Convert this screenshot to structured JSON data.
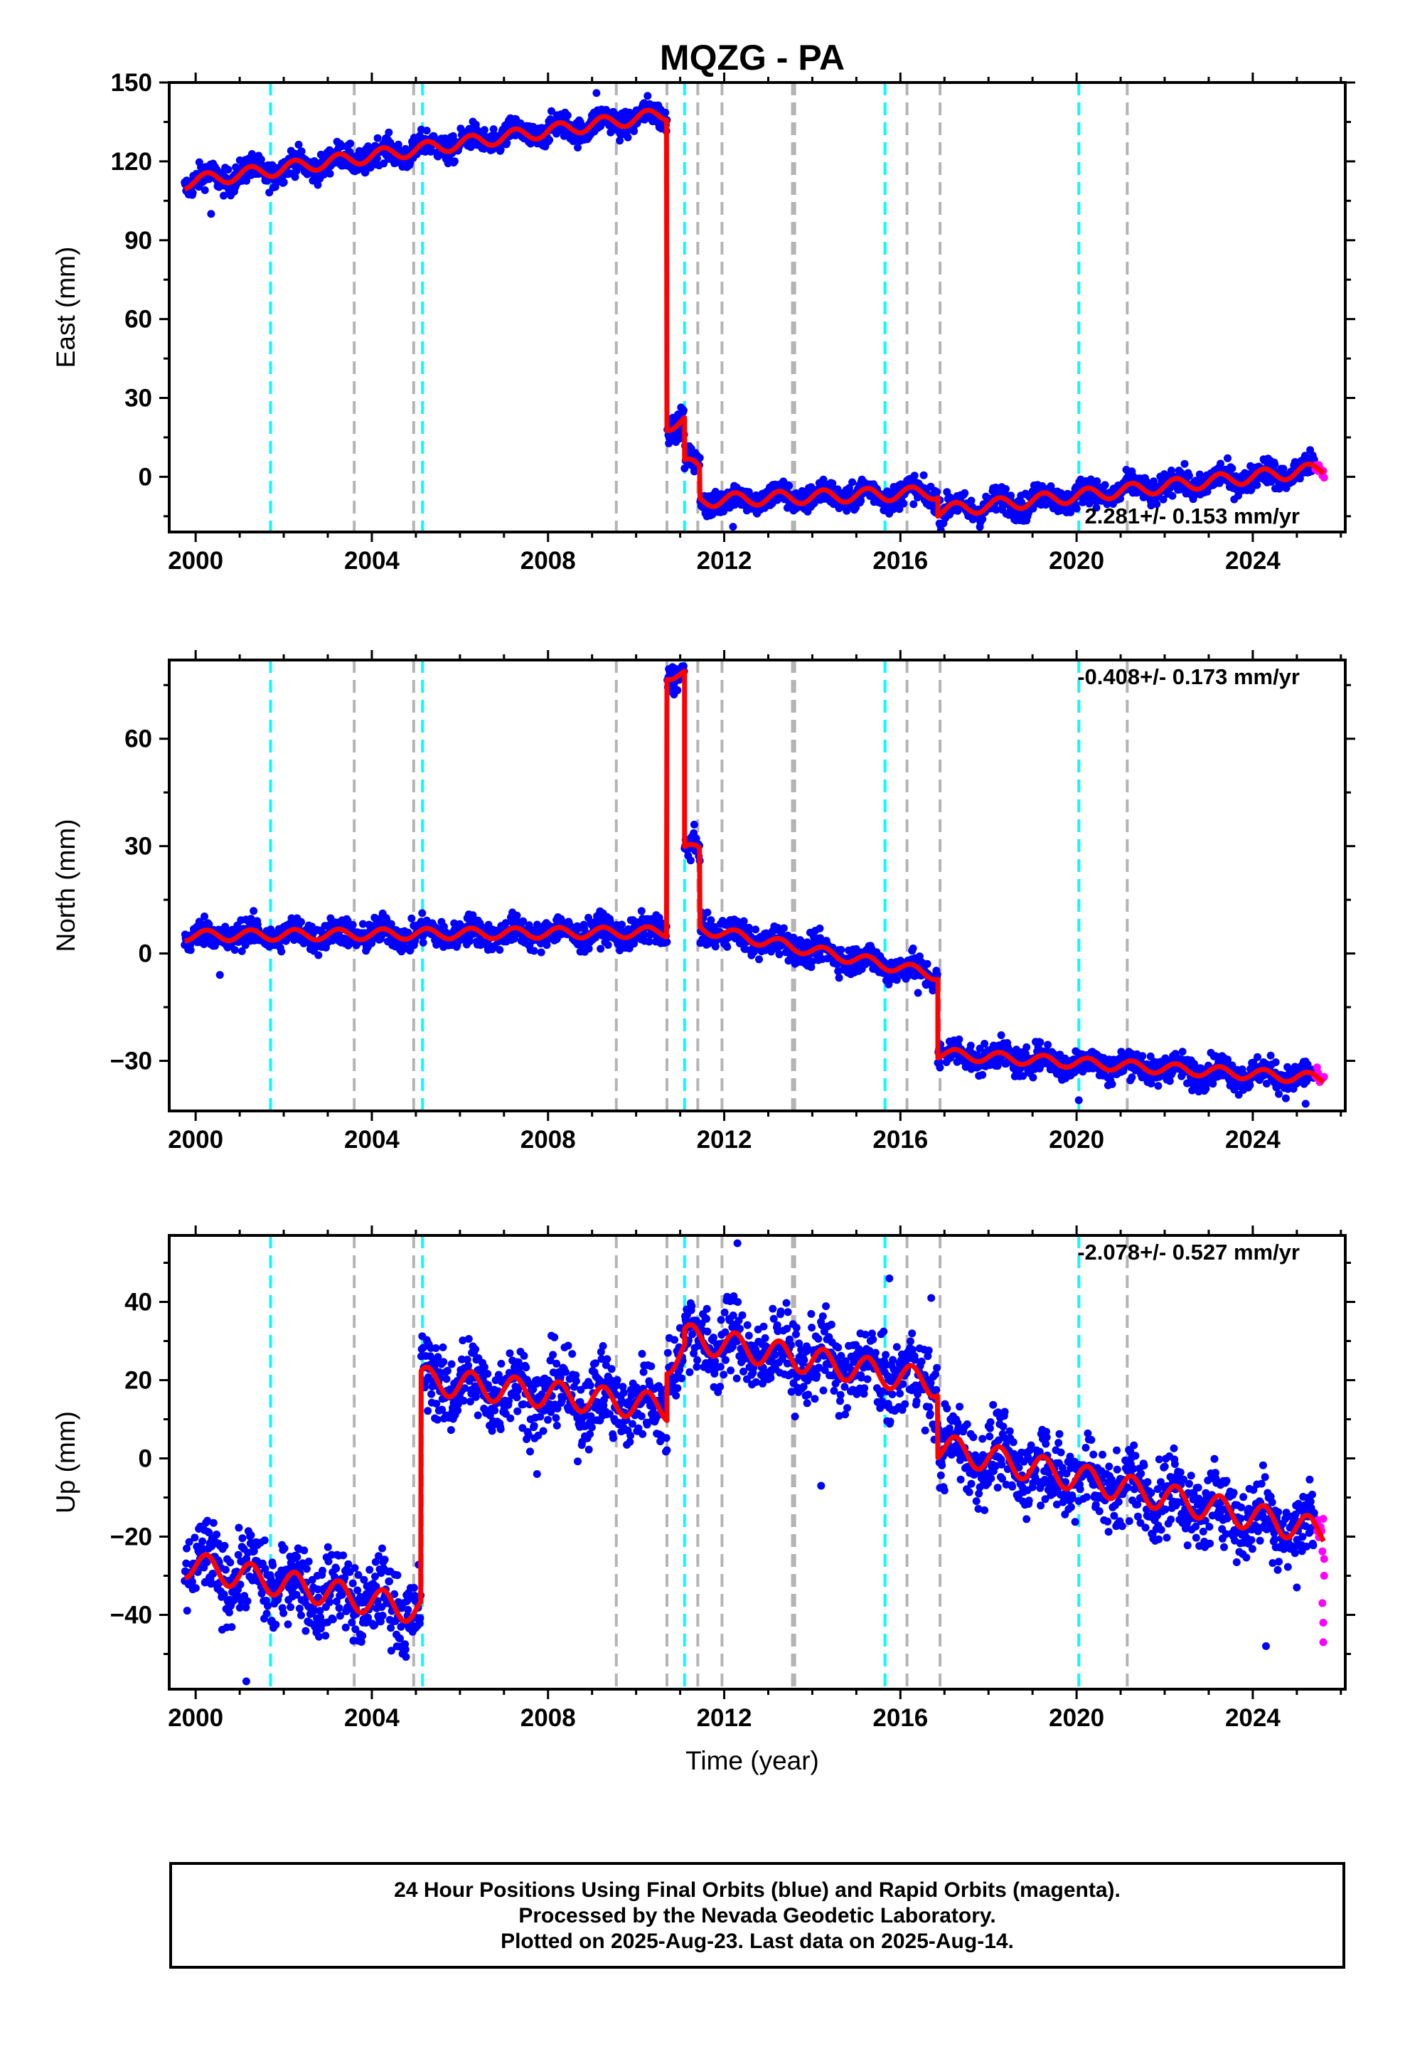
{
  "title": "MQZG - PA",
  "xlabel": "Time (year)",
  "footer": {
    "line1": "24 Hour Positions Using Final Orbits (blue) and Rapid Orbits (magenta).",
    "line2": "Processed by the Nevada Geodetic Laboratory.",
    "line3": "Plotted on 2025-Aug-23. Last data on 2025-Aug-14."
  },
  "colors": {
    "final": "#0000ff",
    "rapid": "#ff00ff",
    "model": "#ff0000",
    "equipment": "#00ffff",
    "earthquake": "#b4b4b4"
  },
  "chart_data": [
    {
      "type": "scatter",
      "panel": "east",
      "ylabel": "East (mm)",
      "xlim": [
        1999.4,
        2026.1
      ],
      "ylim": [
        -21,
        150
      ],
      "yticks": [
        0,
        30,
        60,
        90,
        120,
        150
      ],
      "xticks": [
        2000,
        2004,
        2008,
        2012,
        2016,
        2020,
        2024
      ],
      "rate": "2.281+/- 0.153 mm/yr",
      "annual_amp": 2.5,
      "noise": 2.5,
      "data_start": 1999.75,
      "data_end": 2025.4,
      "rapid_start": 2025.42,
      "rapid_end": 2025.62,
      "model_segments": [
        {
          "from": 1999.75,
          "to": 2010.7,
          "y0": 112,
          "y1": 138
        },
        {
          "from": 2010.7,
          "to": 2011.1,
          "y0": 20,
          "y1": 21
        },
        {
          "from": 2011.1,
          "to": 2011.45,
          "y0": 5,
          "y1": 3
        },
        {
          "from": 2011.45,
          "to": 2016.85,
          "y0": -9,
          "y1": -6
        },
        {
          "from": 2016.85,
          "to": 2025.62,
          "y0": -13,
          "y1": 3
        }
      ],
      "outliers": [
        [
          2000.35,
          100
        ],
        [
          2009.1,
          146
        ],
        [
          2012.2,
          -19
        ]
      ]
    },
    {
      "type": "scatter",
      "panel": "north",
      "ylabel": "North (mm)",
      "xlim": [
        1999.4,
        2026.1
      ],
      "ylim": [
        -44,
        82
      ],
      "yticks": [
        -30,
        0,
        30,
        60
      ],
      "xticks": [
        2000,
        2004,
        2008,
        2012,
        2016,
        2020,
        2024
      ],
      "rate": "-0.408+/- 0.173 mm/yr",
      "annual_amp": 1.5,
      "noise": 2.0,
      "data_start": 1999.75,
      "data_end": 2025.4,
      "rapid_start": 2025.42,
      "rapid_end": 2025.62,
      "model_segments": [
        {
          "from": 1999.75,
          "to": 2010.7,
          "y0": 5,
          "y1": 6
        },
        {
          "from": 2010.7,
          "to": 2011.1,
          "y0": 78,
          "y1": 78
        },
        {
          "from": 2011.1,
          "to": 2011.45,
          "y0": 29,
          "y1": 29
        },
        {
          "from": 2011.45,
          "to": 2016.85,
          "y0": 7,
          "y1": -6
        },
        {
          "from": 2016.85,
          "to": 2025.62,
          "y0": -28,
          "y1": -35
        }
      ],
      "outliers": [
        [
          2000.55,
          -6
        ],
        [
          2016.4,
          -11
        ],
        [
          2025.2,
          -42
        ],
        [
          2020.05,
          -41
        ]
      ]
    },
    {
      "type": "scatter",
      "panel": "up",
      "ylabel": "Up (mm)",
      "xlim": [
        1999.4,
        2026.1
      ],
      "ylim": [
        -59,
        57
      ],
      "yticks": [
        -40,
        -20,
        0,
        20,
        40
      ],
      "xticks": [
        2000,
        2004,
        2008,
        2012,
        2016,
        2020,
        2024
      ],
      "rate": "-2.078+/- 0.527 mm/yr",
      "annual_amp": 3.5,
      "noise": 5.0,
      "data_start": 1999.75,
      "data_end": 2025.4,
      "rapid_start": 2025.42,
      "rapid_end": 2025.62,
      "model_segments": [
        {
          "from": 1999.75,
          "to": 2005.12,
          "y0": -27,
          "y1": -39
        },
        {
          "from": 2005.12,
          "to": 2010.7,
          "y0": 20,
          "y1": 13
        },
        {
          "from": 2010.7,
          "to": 2011.1,
          "y0": 25,
          "y1": 27
        },
        {
          "from": 2011.1,
          "to": 2016.85,
          "y0": 31,
          "y1": 19
        },
        {
          "from": 2016.85,
          "to": 2025.62,
          "y0": 3,
          "y1": -19
        }
      ],
      "outliers": [
        [
          2012.3,
          55
        ],
        [
          2015.75,
          46
        ],
        [
          2016.7,
          41
        ],
        [
          2024.3,
          -48
        ],
        [
          2001.15,
          -57
        ],
        [
          2007.75,
          -4
        ],
        [
          2014.2,
          -7
        ],
        [
          2025.0,
          -33
        ]
      ],
      "rapid_outliers": [
        [
          2025.58,
          -37
        ],
        [
          2025.6,
          -42
        ],
        [
          2025.6,
          -47
        ],
        [
          2025.62,
          -30
        ]
      ]
    }
  ],
  "vlines": {
    "equipment": [
      2001.7,
      2005.15,
      2011.1,
      2015.65,
      2020.05
    ],
    "earthquake": [
      2003.6,
      2004.95,
      2009.55,
      2010.7,
      2011.4,
      2011.95,
      2013.55,
      2013.6,
      2016.15,
      2016.9,
      2021.15
    ]
  }
}
